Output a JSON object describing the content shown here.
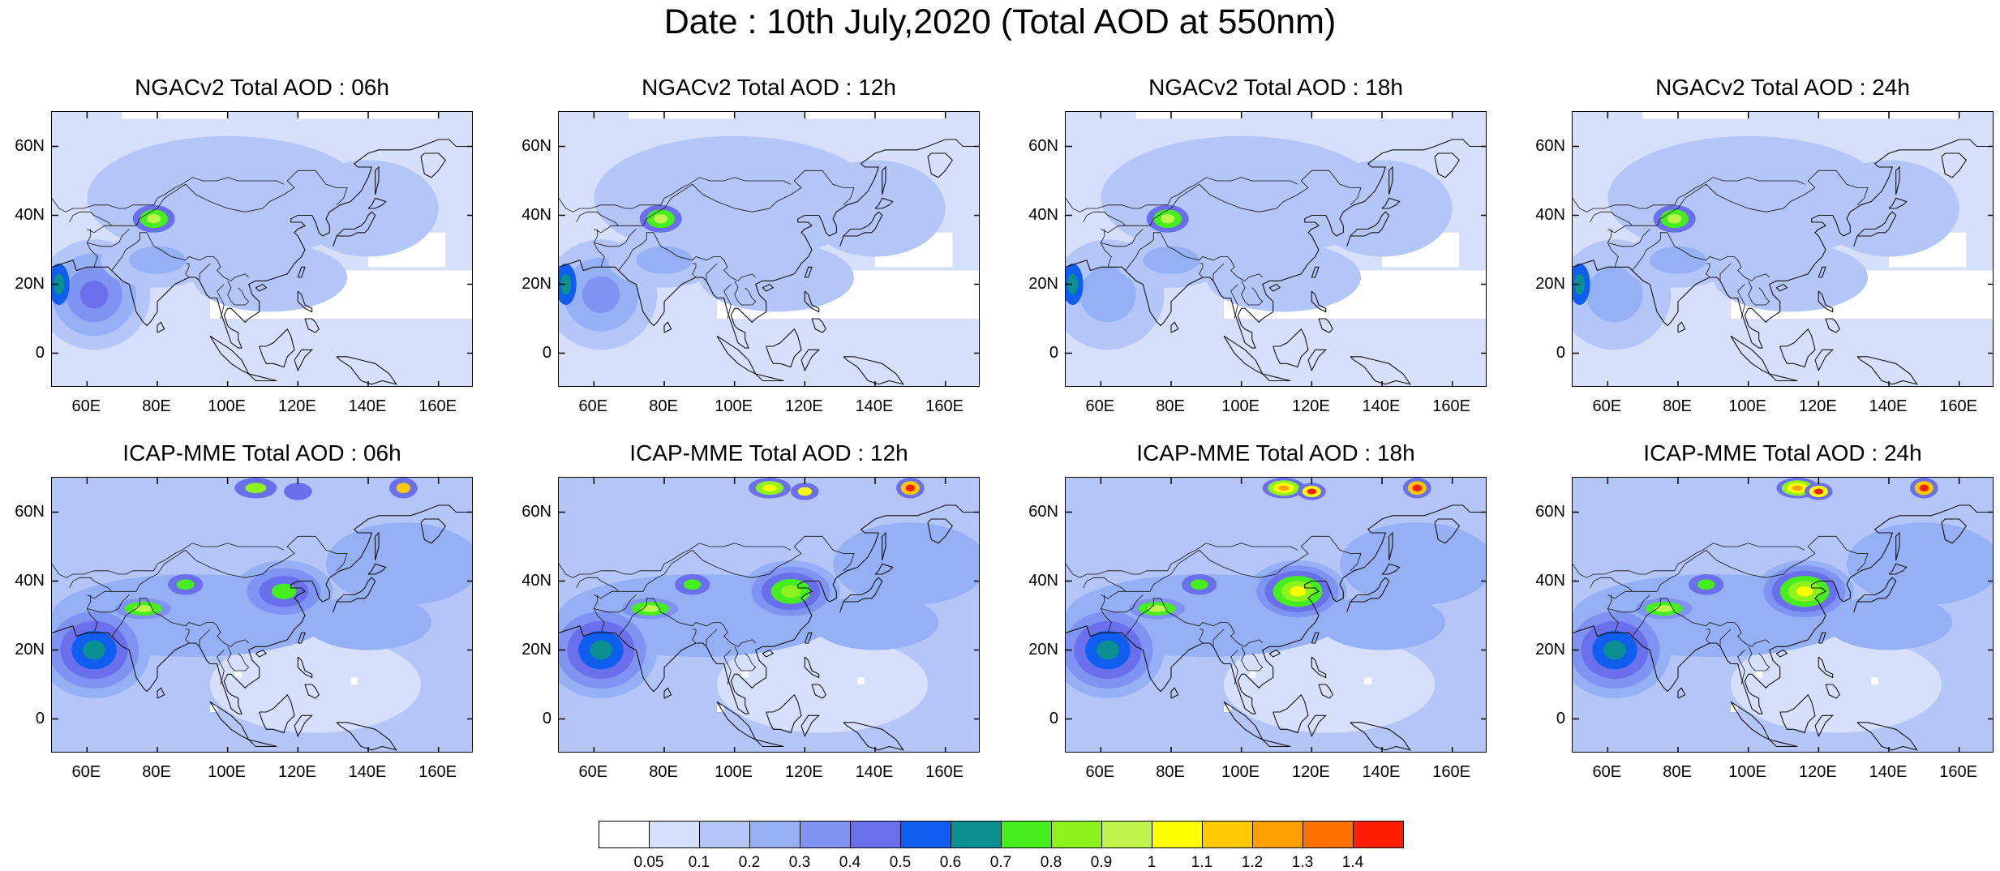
{
  "title": "Date : 10th July,2020 (Total AOD at 550nm)",
  "panels": [
    {
      "title": "NGACv2 Total AOD : 06h",
      "model": "NGACv2",
      "lead": "06h"
    },
    {
      "title": "NGACv2 Total AOD : 12h",
      "model": "NGACv2",
      "lead": "12h"
    },
    {
      "title": "NGACv2 Total AOD : 18h",
      "model": "NGACv2",
      "lead": "18h"
    },
    {
      "title": "NGACv2 Total AOD : 24h",
      "model": "NGACv2",
      "lead": "24h"
    },
    {
      "title": "ICAP-MME Total AOD : 06h",
      "model": "ICAP-MME",
      "lead": "06h"
    },
    {
      "title": "ICAP-MME Total AOD : 12h",
      "model": "ICAP-MME",
      "lead": "12h"
    },
    {
      "title": "ICAP-MME Total AOD : 18h",
      "model": "ICAP-MME",
      "lead": "18h"
    },
    {
      "title": "ICAP-MME Total AOD : 24h",
      "model": "ICAP-MME",
      "lead": "24h"
    }
  ],
  "map_extent": {
    "lon_min": 50,
    "lon_max": 170,
    "lat_min": -10,
    "lat_max": 70
  },
  "lat_ticks": [
    "60N",
    "40N",
    "20N",
    "0"
  ],
  "lon_ticks": [
    "60E",
    "80E",
    "100E",
    "120E",
    "140E",
    "160E"
  ],
  "colorbar": {
    "labels": [
      "0.05",
      "0.1",
      "0.2",
      "0.3",
      "0.4",
      "0.5",
      "0.6",
      "0.7",
      "0.8",
      "0.9",
      "1",
      "1.1",
      "1.2",
      "1.3",
      "1.4"
    ],
    "colors": [
      "#ffffff",
      "#d6e0fb",
      "#b4c6f8",
      "#96b0f5",
      "#7f94f2",
      "#6a70ec",
      "#0f5ef0",
      "#0a9090",
      "#46ee1e",
      "#8ef21e",
      "#bff44c",
      "#ffff00",
      "#ffc800",
      "#ffa000",
      "#ff7200",
      "#ff1e00"
    ]
  }
}
